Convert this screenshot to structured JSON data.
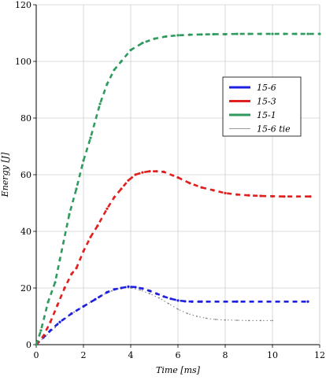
{
  "chart_data": {
    "type": "scatter",
    "xlabel": "Time [ms]",
    "ylabel": "Energy [J]",
    "xlim": [
      0,
      12
    ],
    "ylim": [
      0,
      120
    ],
    "xticks": [
      "0",
      "2",
      "4",
      "6",
      "8",
      "10",
      "12"
    ],
    "yticks": [
      "0",
      "20",
      "40",
      "60",
      "80",
      "100",
      "120"
    ],
    "grid": true,
    "legend": "right",
    "series": [
      {
        "name": "15-6",
        "color": "#1f1fe0",
        "x": [
          0,
          0.3,
          0.6,
          1.0,
          1.5,
          2.0,
          2.5,
          3.0,
          3.3,
          3.6,
          3.9,
          4.2,
          4.5,
          4.8,
          5.1,
          5.4,
          5.7,
          6.0,
          6.3,
          6.6,
          6.9,
          7.0,
          8.5,
          11.5
        ],
        "y": [
          0,
          2.5,
          5,
          8,
          11,
          13.5,
          16,
          18.5,
          19.5,
          20,
          20.5,
          20.3,
          19.8,
          19,
          18,
          17,
          16.2,
          15.6,
          15.3,
          15.2,
          15.2,
          15.2,
          15.2,
          15.2
        ]
      },
      {
        "name": "15-3",
        "color": "#e01f1f",
        "x": [
          0,
          0.3,
          0.6,
          0.9,
          1.2,
          1.5,
          1.7,
          2.0,
          2.3,
          2.6,
          3.0,
          3.3,
          3.6,
          3.9,
          4.2,
          4.5,
          4.8,
          5.1,
          5.4,
          6.0,
          6.5,
          7.0,
          7.5,
          8.0,
          8.5,
          9.0,
          9.5,
          10.0,
          10.5,
          11.6
        ],
        "y": [
          0,
          3,
          8,
          14,
          20,
          25,
          27,
          33,
          38,
          42,
          48,
          52,
          55,
          58,
          60,
          60.8,
          61.2,
          61.2,
          61,
          59,
          57,
          55.5,
          54.5,
          53.5,
          53,
          52.7,
          52.5,
          52.4,
          52.3,
          52.3
        ]
      },
      {
        "name": "15-1",
        "color": "#2e9a5e",
        "x": [
          0,
          0.2,
          0.5,
          0.8,
          1.0,
          1.4,
          1.7,
          2.0,
          2.3,
          2.7,
          3.0,
          3.3,
          3.6,
          4.0,
          4.5,
          5.0,
          5.5,
          6.0,
          6.5,
          7.0,
          7.5,
          8.0,
          8.5,
          9.0,
          9.5,
          10.0,
          10.5,
          11.0,
          11.5,
          12.0
        ],
        "y": [
          0,
          5,
          15,
          22,
          30,
          46,
          55,
          65,
          73,
          85,
          92,
          97,
          100,
          104,
          106.5,
          108,
          108.8,
          109.2,
          109.4,
          109.5,
          109.6,
          109.6,
          109.7,
          109.7,
          109.7,
          109.7,
          109.7,
          109.7,
          109.7,
          109.7
        ]
      },
      {
        "name": "15-6 tie",
        "color": "#7a7a7a",
        "x": [
          0,
          0.4,
          0.8,
          1.2,
          1.6,
          2.0,
          2.4,
          2.8,
          3.2,
          3.6,
          4.0,
          4.4,
          4.8,
          5.2,
          5.6,
          6.0,
          6.4,
          6.8,
          7.2,
          7.6,
          8.0,
          8.5,
          9.0,
          9.5,
          10.0
        ],
        "y": [
          0,
          3,
          6,
          9,
          11.5,
          13.5,
          15.5,
          17.5,
          19,
          20,
          20,
          19.3,
          18,
          16.5,
          14.5,
          12.5,
          11,
          10,
          9.3,
          8.9,
          8.7,
          8.6,
          8.5,
          8.5,
          8.5
        ]
      }
    ]
  }
}
